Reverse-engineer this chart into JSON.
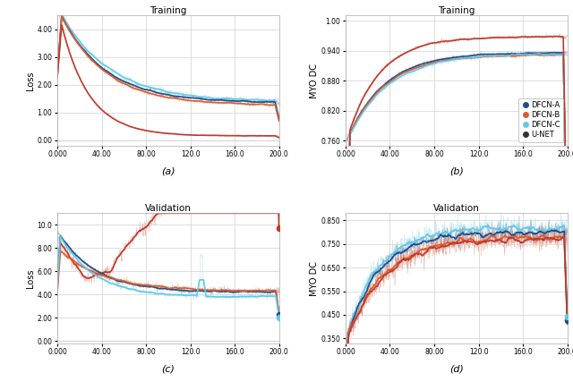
{
  "title_a": "Training",
  "title_b": "Training",
  "title_c": "Validation",
  "title_d": "Validation",
  "label_a": "(a)",
  "label_b": "(b)",
  "label_c": "(c)",
  "label_d": "(d)",
  "ylabel_loss": "Loss",
  "ylabel_myodc": "MYO DC",
  "col_A": "#1c4f8a",
  "col_B": "#e05a2b",
  "col_C": "#62c8e8",
  "col_U": "#c0392b",
  "col_A_dot": "#1c4f8a",
  "col_B_dot": "#e05a2b",
  "col_C_dot": "#62c8e8",
  "col_U_dot": "#c0392b",
  "legend_labels": [
    "DFCN-A",
    "DFCN-B",
    "DFCN-C",
    "U-NET"
  ],
  "xlim": [
    0,
    200
  ],
  "ylim_a": [
    -0.2,
    4.5
  ],
  "ylim_b": [
    0.75,
    1.01
  ],
  "ylim_c": [
    -0.2,
    11.0
  ],
  "ylim_d": [
    0.33,
    0.88
  ],
  "xticks": [
    0,
    40,
    80,
    120,
    160,
    200
  ],
  "xtick_labels": [
    "0.000",
    "40.00",
    "80.00",
    "120.0",
    "160.0",
    "200.0"
  ],
  "yticks_a": [
    0.0,
    1.0,
    2.0,
    3.0,
    4.0
  ],
  "ytick_labels_a": [
    "0.00",
    "1.00",
    "2.00",
    "3.00",
    "4.00"
  ],
  "yticks_b": [
    0.76,
    0.82,
    0.88,
    0.94,
    1.0
  ],
  "ytick_labels_b": [
    "0.760",
    "0.820",
    "0.880",
    "0.940",
    "1.00"
  ],
  "yticks_c": [
    0.0,
    2.0,
    4.0,
    6.0,
    8.0,
    10.0
  ],
  "ytick_labels_c": [
    "0.00",
    "2.00",
    "4.00",
    "6.00",
    "8.00",
    "10.0"
  ],
  "yticks_d": [
    0.35,
    0.45,
    0.55,
    0.65,
    0.75,
    0.85
  ],
  "ytick_labels_d": [
    "0.350",
    "0.450",
    "0.550",
    "0.650",
    "0.750",
    "0.850"
  ],
  "bg_color": "#ffffff",
  "grid_color": "#d8d8d8",
  "seed": 42
}
